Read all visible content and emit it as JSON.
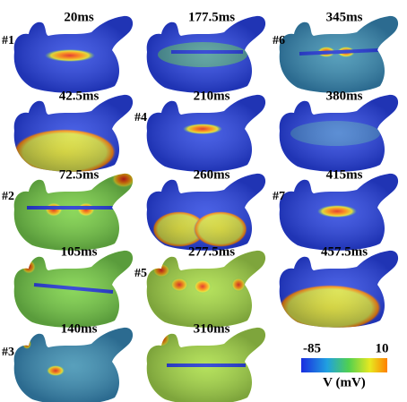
{
  "panels": [
    {
      "time": "20ms"
    },
    {
      "time": "42.5ms"
    },
    {
      "time": "72.5ms"
    },
    {
      "time": "105ms"
    },
    {
      "time": "140ms"
    },
    {
      "time": "177.5ms"
    },
    {
      "time": "210ms"
    },
    {
      "time": "260ms"
    },
    {
      "time": "277.5ms"
    },
    {
      "time": "310ms"
    },
    {
      "time": "345ms"
    },
    {
      "time": "380ms"
    },
    {
      "time": "415ms"
    },
    {
      "time": "457.5ms"
    }
  ],
  "markers": [
    {
      "label": "#1"
    },
    {
      "label": "#6"
    },
    {
      "label": "#4"
    },
    {
      "label": "#2"
    },
    {
      "label": "#7"
    },
    {
      "label": "#5"
    },
    {
      "label": "#3"
    }
  ],
  "colorbar": {
    "min": "-85",
    "max": "10",
    "label": "V (mV)"
  }
}
